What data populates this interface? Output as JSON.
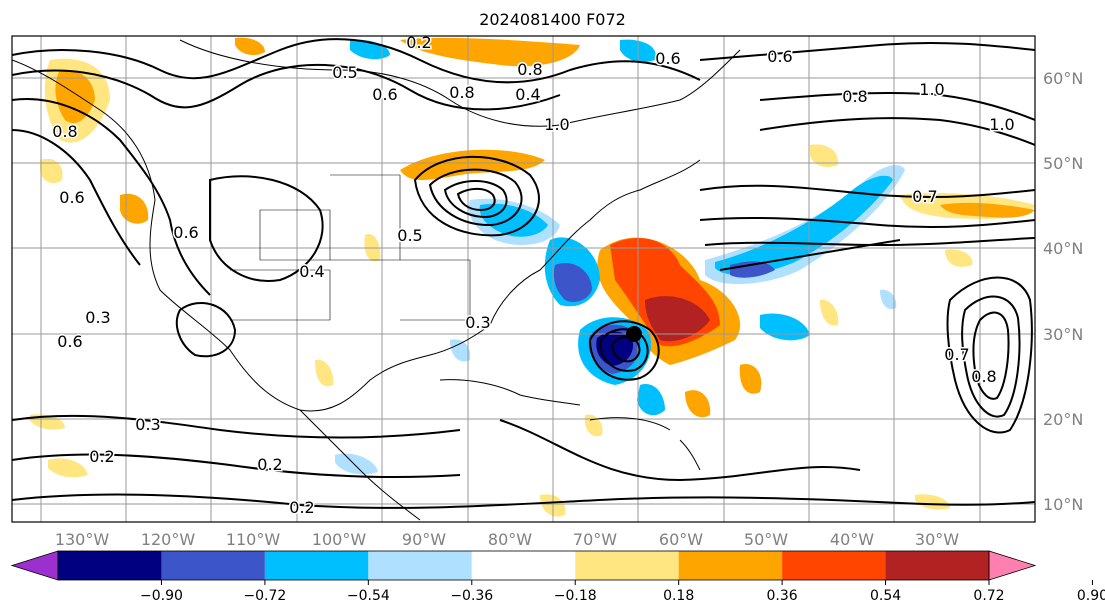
{
  "title": "2024081400 F072",
  "map": {
    "longitudes": [
      "130°W",
      "120°W",
      "110°W",
      "100°W",
      "90°W",
      "80°W",
      "70°W",
      "60°W",
      "50°W",
      "40°W",
      "30°W"
    ],
    "latitudes": [
      "60°N",
      "50°N",
      "40°N",
      "30°N",
      "20°N",
      "10°N"
    ],
    "contour_labels": [
      "0.5",
      "0.6",
      "0.8",
      "0.4",
      "1.0",
      "0.2",
      "0.6",
      "0.8",
      "0.8",
      "1.0",
      "1.0",
      "0.7",
      "0.6",
      "0.4",
      "0.3",
      "0.3",
      "0.2",
      "0.2",
      "0.2",
      "0.5",
      "0.6",
      "0.6",
      "0.8",
      "0.7",
      "0.3",
      "0.6",
      "0.8"
    ],
    "colors": {
      "purple": "#9b30ce",
      "navy": "#000080",
      "blue": "#3c55c8",
      "deepskyblue": "#00bfff",
      "lightblue": "#b0e0ff",
      "white": "#ffffff",
      "yellow": "#ffe680",
      "orange": "#ffa500",
      "orangered": "#ff4500",
      "firebrick": "#b22222",
      "pink": "#ff80b0"
    }
  },
  "colorbar": {
    "ticks": [
      "−0.90",
      "−0.72",
      "−0.54",
      "−0.36",
      "−0.18",
      "0.18",
      "0.36",
      "0.54",
      "0.72",
      "0.90"
    ],
    "bins": [
      "#9b30ce",
      "#000080",
      "#3c55c8",
      "#00bfff",
      "#b0e0ff",
      "#ffffff",
      "#ffe680",
      "#ffa500",
      "#ff4500",
      "#b22222",
      "#ff80b0"
    ]
  }
}
